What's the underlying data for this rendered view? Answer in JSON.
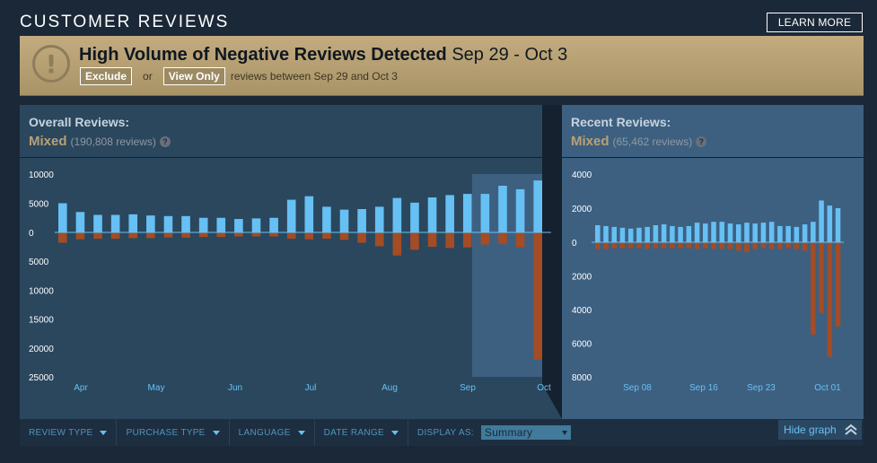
{
  "header": {
    "title": "CUSTOMER REVIEWS",
    "learn_more": "LEARN MORE"
  },
  "alert": {
    "title_bold": "High Volume of Negative Reviews Detected",
    "title_dates": "Sep 29 - Oct 3",
    "icon": "exclamation-icon",
    "exclude_label": "Exclude",
    "or_text": "or",
    "view_only_label": "View Only",
    "suffix": "reviews between Sep 29 and Oct 3"
  },
  "overall": {
    "title": "Overall Reviews:",
    "score": "Mixed",
    "count": "(190,808 reviews)",
    "help": "?"
  },
  "recent": {
    "title": "Recent Reviews:",
    "score": "Mixed",
    "count": "(65,462 reviews)",
    "help": "?"
  },
  "filters": {
    "review_type": "REVIEW TYPE",
    "purchase_type": "PURCHASE TYPE",
    "language": "LANGUAGE",
    "date_range": "DATE RANGE",
    "display_as": "DISPLAY AS:",
    "display_value": "Summary"
  },
  "hide_graph": "Hide graph",
  "colors": {
    "positive": "#66c0f4",
    "negative": "#a34c25",
    "mixed": "#b9a074",
    "highlight": "#3d6081"
  },
  "chart_data": [
    {
      "type": "bar",
      "title": "Overall Reviews",
      "y_up_ticks": [
        "10000",
        "5000",
        "0"
      ],
      "y_down_ticks": [
        "5000",
        "10000",
        "15000",
        "20000",
        "25000"
      ],
      "ylim": [
        -25000,
        10000
      ],
      "x_labels": [
        "Apr",
        "May",
        "Jun",
        "Jul",
        "Aug",
        "Sep",
        "Oct"
      ],
      "highlight_range": "Sep 29 - Oct 3",
      "series": [
        {
          "name": "Positive",
          "values": [
            5000,
            3500,
            3000,
            3000,
            3100,
            2900,
            2800,
            2800,
            2500,
            2500,
            2300,
            2400,
            2500,
            5600,
            6200,
            4400,
            3900,
            4000,
            4400,
            5900,
            5100,
            6000,
            6400,
            6600,
            6600,
            8000,
            7400,
            8900
          ]
        },
        {
          "name": "Negative",
          "values": [
            -1800,
            -1200,
            -1100,
            -1100,
            -1000,
            -1000,
            -900,
            -900,
            -800,
            -800,
            -700,
            -700,
            -700,
            -1100,
            -1200,
            -1100,
            -1300,
            -1800,
            -2400,
            -4000,
            -3000,
            -2500,
            -2700,
            -2600,
            -2100,
            -2000,
            -2600,
            -22000
          ]
        }
      ]
    },
    {
      "type": "bar",
      "title": "Recent Reviews",
      "y_up_ticks": [
        "4000",
        "2000",
        "0"
      ],
      "y_down_ticks": [
        "2000",
        "4000",
        "6000",
        "8000"
      ],
      "ylim": [
        -8000,
        4000
      ],
      "x_labels": [
        "Sep 08",
        "Sep 16",
        "Sep 23",
        "Oct 01"
      ],
      "series": [
        {
          "name": "Positive",
          "values": [
            1000,
            950,
            900,
            850,
            800,
            850,
            900,
            1000,
            1050,
            950,
            900,
            950,
            1150,
            1100,
            1200,
            1200,
            1100,
            1050,
            1150,
            1100,
            1150,
            1200,
            950,
            950,
            900,
            1050,
            1200,
            2450,
            2150,
            2000
          ]
        },
        {
          "name": "Negative",
          "values": [
            -400,
            -400,
            -350,
            -350,
            -350,
            -350,
            -400,
            -350,
            -350,
            -350,
            -350,
            -350,
            -400,
            -350,
            -400,
            -400,
            -400,
            -500,
            -600,
            -400,
            -350,
            -400,
            -400,
            -350,
            -400,
            -500,
            -5500,
            -4200,
            -6800,
            -5000
          ]
        }
      ]
    }
  ]
}
